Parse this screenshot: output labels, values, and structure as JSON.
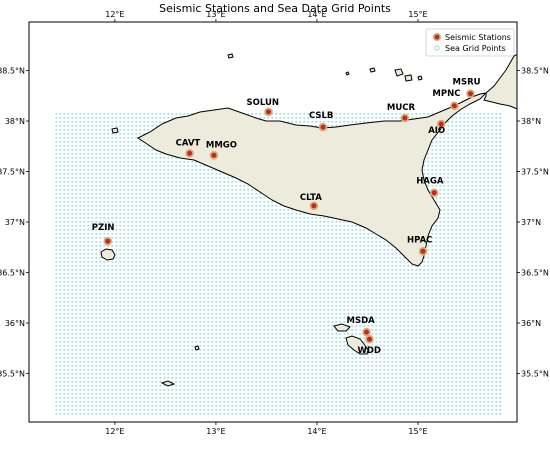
{
  "title": "Seismic Stations and Sea Data Grid Points",
  "colors": {
    "land": "#ecebdc",
    "coast": "#000000",
    "station_fill": "#c22a1a",
    "station_halo": "#d9ab7a",
    "grid_point": "#7fd3d9",
    "frame": "#000000"
  },
  "axes": {
    "lon_range": [
      11.15,
      15.98
    ],
    "lat_range": [
      35.02,
      38.98
    ],
    "lon_ticks": [
      {
        "value": 12,
        "label": "12°E"
      },
      {
        "value": 13,
        "label": "13°E"
      },
      {
        "value": 14,
        "label": "14°E"
      },
      {
        "value": 15,
        "label": "15°E"
      }
    ],
    "lat_ticks": [
      {
        "value": 38.5,
        "label": "38.5°N"
      },
      {
        "value": 38.0,
        "label": "38°N"
      },
      {
        "value": 37.5,
        "label": "37.5°N"
      },
      {
        "value": 37.0,
        "label": "37°N"
      },
      {
        "value": 36.5,
        "label": "36.5°N"
      },
      {
        "value": 36.0,
        "label": "36°N"
      },
      {
        "value": 35.5,
        "label": "35.5°N"
      }
    ]
  },
  "legend": {
    "placement": "top-right",
    "items": [
      {
        "label": "Seismic Stations",
        "symbol": "station"
      },
      {
        "label": "Sea Grid Points",
        "symbol": "grid"
      }
    ]
  },
  "stations": [
    {
      "name": "SOLUN",
      "lon": 13.52,
      "lat": 38.09
    },
    {
      "name": "CSLB",
      "lon": 14.06,
      "lat": 37.94
    },
    {
      "name": "MUCR",
      "lon": 14.87,
      "lat": 38.03
    },
    {
      "name": "MPNC",
      "lon": 15.36,
      "lat": 38.15
    },
    {
      "name": "MSRU",
      "lon": 15.52,
      "lat": 38.27
    },
    {
      "name": "AIO",
      "lon": 15.23,
      "lat": 37.97
    },
    {
      "name": "CAVT",
      "lon": 12.74,
      "lat": 37.68
    },
    {
      "name": "MMGO",
      "lon": 12.98,
      "lat": 37.66
    },
    {
      "name": "HAGA",
      "lon": 15.16,
      "lat": 37.29
    },
    {
      "name": "CLTA",
      "lon": 13.97,
      "lat": 37.16
    },
    {
      "name": "PZIN",
      "lon": 11.93,
      "lat": 36.81
    },
    {
      "name": "HPAC",
      "lon": 15.05,
      "lat": 36.71
    },
    {
      "name": "MSDA",
      "lon": 14.49,
      "lat": 35.91
    },
    {
      "name": "WDD",
      "lon": 14.52,
      "lat": 35.84
    }
  ],
  "grid": {
    "lon_min": 11.42,
    "lon_max": 15.85,
    "lat_min": 35.08,
    "lat_max": 38.07,
    "step_deg": 0.05
  }
}
